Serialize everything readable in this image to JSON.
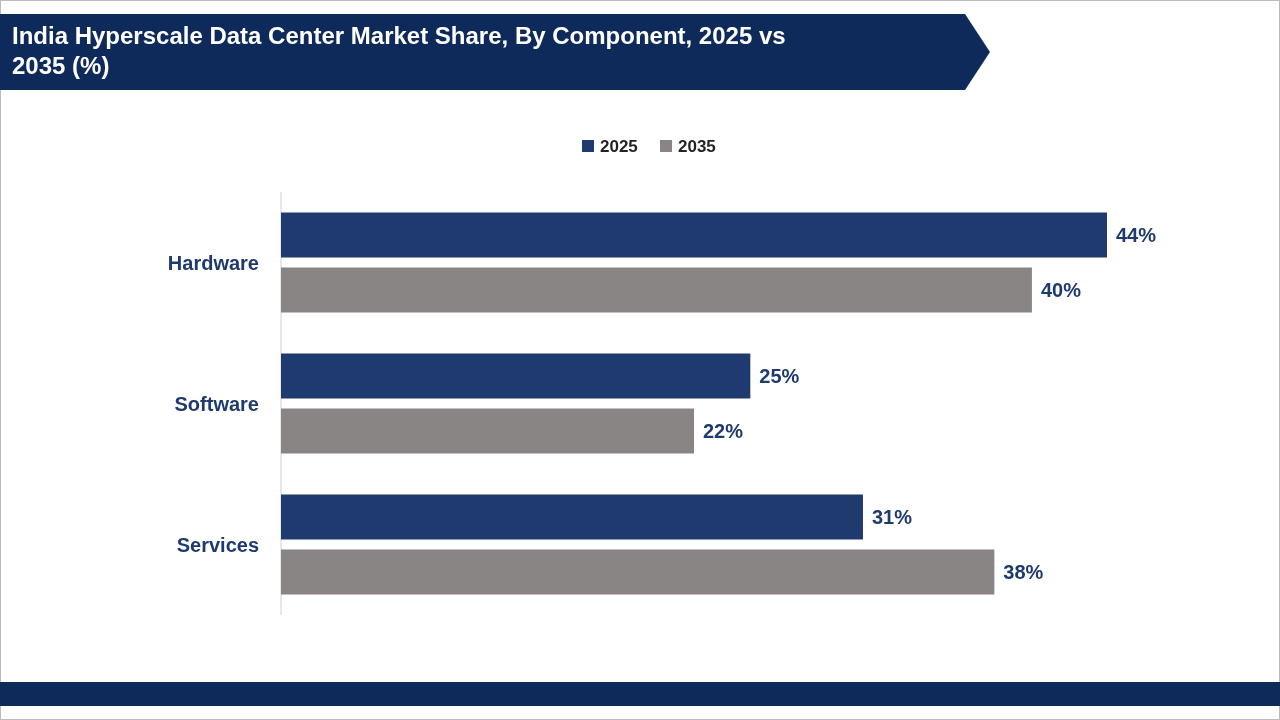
{
  "chart_data": {
    "type": "bar",
    "orientation": "horizontal",
    "title": "India Hyperscale Data Center Market Share, By Component, 2025 vs 2035 (%)",
    "categories": [
      "Hardware",
      "Software",
      "Services"
    ],
    "series": [
      {
        "name": "2025",
        "color": "#1f3a6e",
        "values": [
          44,
          25,
          31
        ],
        "value_labels": [
          "44%",
          "25%",
          "31%"
        ]
      },
      {
        "name": "2035",
        "color": "#8a8585",
        "values": [
          40,
          22,
          38
        ],
        "value_labels": [
          "40%",
          "22%",
          "38%"
        ]
      }
    ],
    "legend": "top",
    "tick_labels": "y"
  }
}
